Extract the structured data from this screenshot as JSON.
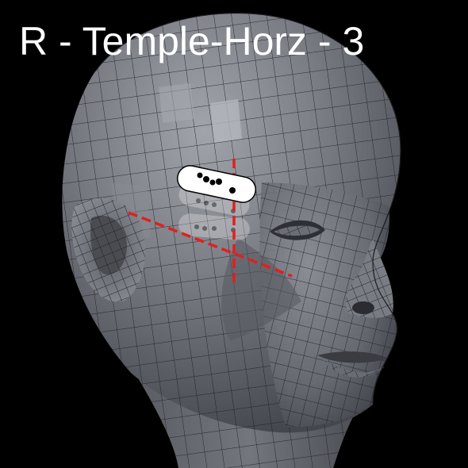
{
  "title": "R - Temple-Horz - 3",
  "colors": {
    "background": "#000000",
    "mesh_light": "#9a9ca4",
    "mesh_mid": "#6f7179",
    "mesh_dark": "#3c3e45",
    "wire": "#1b1c20",
    "guide_line": "#e0201e",
    "electrode_pad": "#ffffff",
    "electrode_dot": "#000000"
  },
  "markers": {
    "active_pad_dots": 5,
    "ghost_pad_count": 2
  }
}
